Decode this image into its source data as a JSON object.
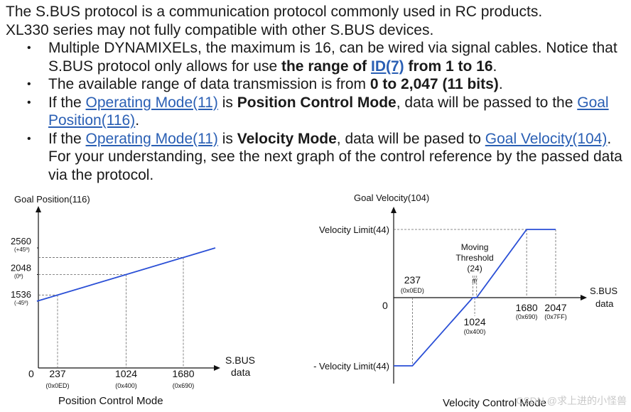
{
  "text": {
    "intro_line1": "The S.BUS protocol is a communication protocol commonly used in RC products.",
    "intro_line2": "XL330 series may not fully compatible with other S.BUS devices.",
    "b1_part1": "Multiple DYNAMIXELs, the maximum is 16, can be wired via signal cables. Notice that S.BUS protocol only allows for use ",
    "b1_bold1": "the range of ",
    "b1_link": "ID(7)",
    "b1_bold2": " from 1 to 16",
    "b1_end": ".",
    "b2_part1": "The available range of data transmission is from ",
    "b2_bold": "0 to 2,047 (11 bits)",
    "b2_end": ".",
    "b3_part1": "If the ",
    "b3_link1": "Operating Mode(11)",
    "b3_is": " is ",
    "b3_bold": "Position Control Mode",
    "b3_part2": ", data will be passed to the ",
    "b3_link2": "Goal Position(116)",
    "b3_end": ".",
    "b4_part1": "If the ",
    "b4_link1": "Operating Mode(11)",
    "b4_is": " is ",
    "b4_bold": "Velocity Mode",
    "b4_part2": ", data will be pased to ",
    "b4_link2": "Goal Velocity(104)",
    "b4_part3": ". For your understanding, see the next graph of the control reference by the passed data via the protocol."
  },
  "chart_data": [
    {
      "type": "line",
      "title": "Position Control Mode",
      "ylabel": "Goal Position(116)",
      "xlabel": "S.BUS data",
      "origin_label": "0",
      "x": [
        0,
        2047
      ],
      "y": [
        1536,
        2560
      ],
      "x_ticks": [
        {
          "value": 237,
          "label": "237",
          "sub": "(0x0ED)"
        },
        {
          "value": 1024,
          "label": "1024",
          "sub": "(0x400)"
        },
        {
          "value": 1680,
          "label": "1680",
          "sub": "(0x690)"
        }
      ],
      "y_ticks": [
        {
          "value": 1536,
          "label": "1536",
          "sub": "(-45º)"
        },
        {
          "value": 2048,
          "label": "2048",
          "sub": "(0º)"
        },
        {
          "value": 2560,
          "label": "2560",
          "sub": "(+45º)"
        }
      ],
      "line_color": "#2a4fd6"
    },
    {
      "type": "line",
      "title": "Velocity Control Mode",
      "ylabel": "Goal Velocity(104)",
      "xlabel": "S.BUS data",
      "origin_label": "0",
      "x": [
        0,
        237,
        1000,
        1048,
        1680,
        2047
      ],
      "y": [
        -1,
        -1,
        0,
        0,
        1,
        1
      ],
      "x_ticks": [
        {
          "value": 237,
          "label": "237",
          "sub": "(0x0ED)"
        },
        {
          "value": 1024,
          "label": "1024",
          "sub": "(0x400)"
        },
        {
          "value": 1680,
          "label": "1680",
          "sub": "(0x690)"
        },
        {
          "value": 2047,
          "label": "2047",
          "sub": "(0x7FF)"
        }
      ],
      "y_ticks": [
        {
          "value": 1,
          "label": "Velocity Limit(44)"
        },
        {
          "value": -1,
          "label": "- Velocity Limit(44)"
        }
      ],
      "annotation": {
        "line1": "Moving",
        "line2": "Threshold",
        "line3": "(24)",
        "marker": "//"
      },
      "line_color": "#2a4fd6"
    }
  ],
  "watermark": "CSDN @求上进的小怪兽"
}
